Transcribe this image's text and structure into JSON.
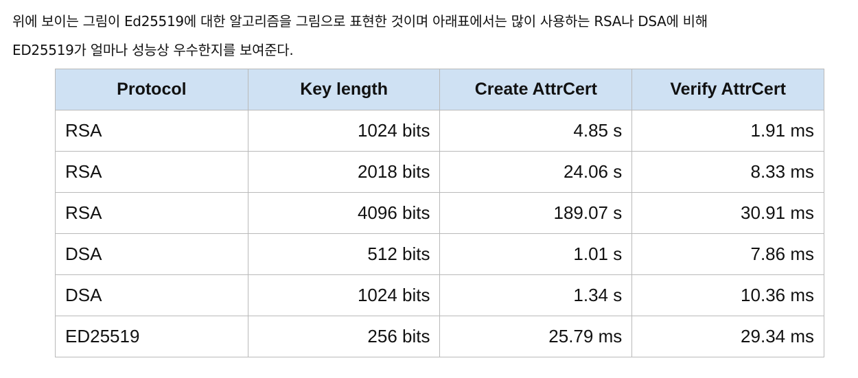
{
  "intro": {
    "line1": "위에 보이는 그림이 Ed25519에 대한 알고리즘을 그림으로 표현한 것이며 아래표에서는 많이 사용하는 RSA나 DSA에 비해",
    "line2": "ED25519가 얼마나 성능상 우수한지를 보여준다."
  },
  "table": {
    "headers": [
      "Protocol",
      "Key length",
      "Create AttrCert",
      "Verify AttrCert"
    ],
    "rows": [
      [
        "RSA",
        "1024 bits",
        "4.85 s",
        "1.91 ms"
      ],
      [
        "RSA",
        "2018 bits",
        "24.06 s",
        "8.33 ms"
      ],
      [
        "RSA",
        "4096 bits",
        "189.07 s",
        "30.91 ms"
      ],
      [
        "DSA",
        "512 bits",
        "1.01 s",
        "7.86 ms"
      ],
      [
        "DSA",
        "1024 bits",
        "1.34 s",
        "10.36 ms"
      ],
      [
        "ED25519",
        "256 bits",
        "25.79 ms",
        "29.34 ms"
      ]
    ]
  },
  "colors": {
    "header_background": "#cfe1f3",
    "border": "#b9b9b9",
    "text": "#111111"
  }
}
